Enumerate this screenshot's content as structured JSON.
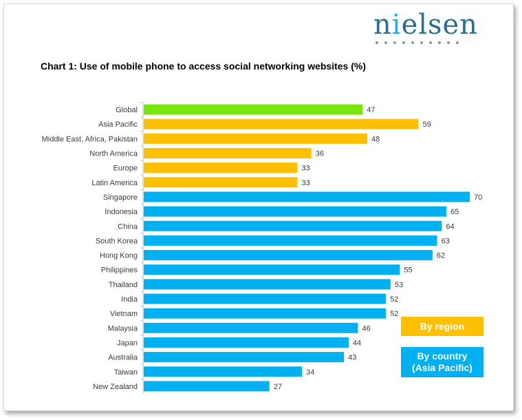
{
  "logo": {
    "text_first": "n",
    "text_i": "i",
    "text_rest": "elsen"
  },
  "chart_data": {
    "type": "bar",
    "orientation": "horizontal",
    "title": "Chart 1: Use of mobile phone to access social networking websites (%)",
    "xlim": [
      0,
      70
    ],
    "grid": false,
    "categories": [
      "Global",
      "Asia Pacific",
      "Middle East, Africa, Pakistan",
      "North America",
      "Europe",
      "Latin America",
      "Singapore",
      "Indonesia",
      "China",
      "South Korea",
      "Hong Kong",
      "Philippines",
      "Thailand",
      "India",
      "Vietnam",
      "Malaysia",
      "Japan",
      "Australia",
      "Taiwan",
      "New Zealand"
    ],
    "values": [
      47,
      59,
      48,
      36,
      33,
      33,
      70,
      65,
      64,
      63,
      62,
      55,
      53,
      52,
      52,
      46,
      44,
      43,
      34,
      27
    ],
    "groups": [
      "global",
      "region",
      "region",
      "region",
      "region",
      "region",
      "country",
      "country",
      "country",
      "country",
      "country",
      "country",
      "country",
      "country",
      "country",
      "country",
      "country",
      "country",
      "country",
      "country"
    ],
    "colors": {
      "global": "#76e60b",
      "region": "#fdc000",
      "country": "#00b0f0"
    },
    "legend": [
      {
        "label": "By region",
        "color": "#fdc000"
      },
      {
        "label": "By country\n(Asia Pacific)",
        "color": "#00b0f0"
      }
    ],
    "legend_position": "bottom-right"
  }
}
